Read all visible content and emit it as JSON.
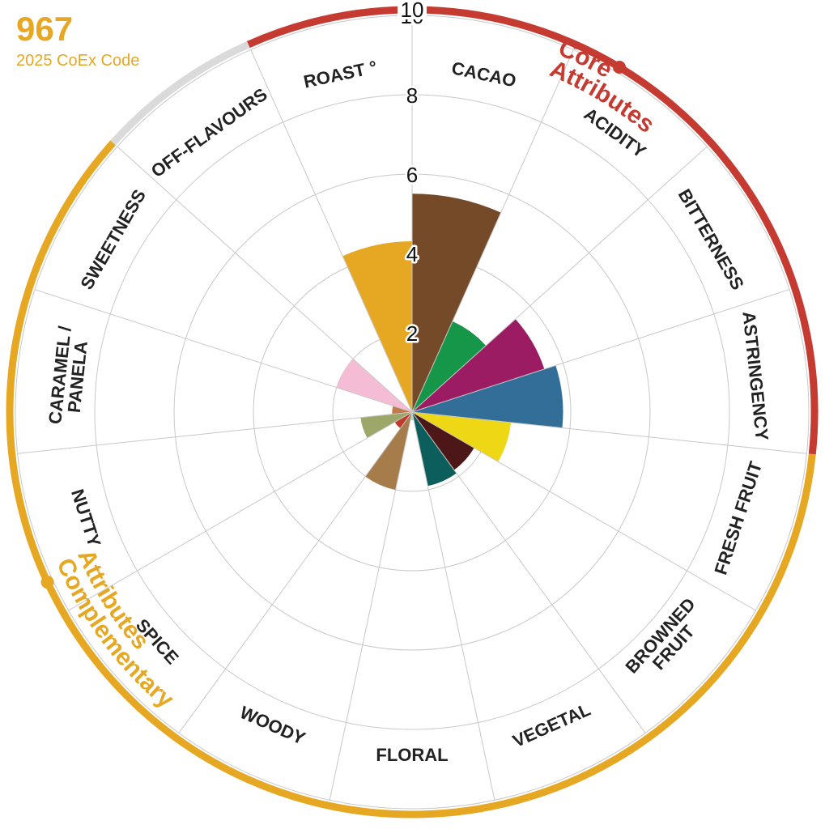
{
  "code": {
    "number": "967",
    "label": "2025 CoEx Code"
  },
  "colors": {
    "core": "#c53b31",
    "complementary": "#e6a823",
    "neutral": "#dadada",
    "grid": "#c8c8c8",
    "text": "#222222"
  },
  "chart_data": {
    "type": "polar-area",
    "rmax": 10,
    "ticks": [
      2,
      4,
      6,
      8,
      10
    ],
    "groups": [
      {
        "name": "Core\nAttributes",
        "color": "#c53b31",
        "categories": [
          "CACAO",
          "ACIDITY",
          "BITTERNESS",
          "ASTRINGENCY"
        ]
      },
      {
        "name": "Complementary\nAttributes",
        "color": "#e6a823",
        "categories": [
          "FRESH FRUIT",
          "BROWNED FRUIT",
          "VEGETAL",
          "FLORAL",
          "WOODY",
          "SPICE",
          "NUTTY",
          "CARAMEL / PANELA",
          "SWEETNESS"
        ]
      }
    ],
    "categories": [
      {
        "label": "CACAO",
        "value": 5.5,
        "color": "#744a29"
      },
      {
        "label": "ACIDITY",
        "value": 2.5,
        "color": "#159649"
      },
      {
        "label": "BITTERNESS",
        "value": 3.5,
        "color": "#9c1c64"
      },
      {
        "label": "ASTRINGENCY",
        "value": 3.8,
        "color": "#326e98"
      },
      {
        "label": "FRESH FRUIT",
        "value": 2.5,
        "color": "#eed714"
      },
      {
        "label": "BROWNED FRUIT",
        "value": 1.8,
        "color": "#4d1717"
      },
      {
        "label": "VEGETAL",
        "value": 1.9,
        "color": "#0c5e5c"
      },
      {
        "label": "FLORAL",
        "value": 0.2,
        "color": "#b5d8b4"
      },
      {
        "label": "WOODY",
        "value": 2.0,
        "color": "#a77c4b"
      },
      {
        "label": "SPICE",
        "value": 0.5,
        "color": "#c0392b"
      },
      {
        "label": "NUTTY",
        "value": 1.3,
        "color": "#9ea76a"
      },
      {
        "label": "CARAMEL / PANELA",
        "value": 0.5,
        "color": "#c47a4a"
      },
      {
        "label": "SWEETNESS",
        "value": 2.0,
        "color": "#f5bcd6"
      },
      {
        "label": "OFF-FLAVOURS",
        "value": 0,
        "color": "#999999"
      },
      {
        "label": "ROAST °",
        "value": 4.3,
        "color": "#e6a823"
      }
    ]
  }
}
